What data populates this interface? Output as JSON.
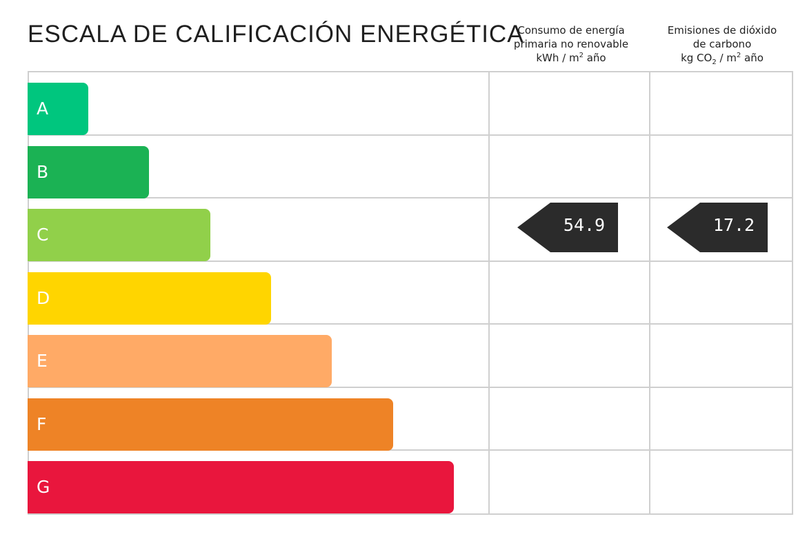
{
  "chart_data": {
    "type": "bar",
    "title": "ESCALA DE CALIFICACIÓN ENERGÉTICA",
    "categories": [
      "A",
      "B",
      "C",
      "D",
      "E",
      "F",
      "G"
    ],
    "values": [
      1,
      2,
      3,
      4,
      5,
      6,
      7
    ],
    "colors": [
      "#00c67e",
      "#1bb254",
      "#91d04a",
      "#ffd500",
      "#ffaa66",
      "#ee8326",
      "#e9163d"
    ],
    "columns": [
      {
        "key": "energy",
        "header_lines": [
          "Consumo de energía",
          "primaria no renovable"
        ],
        "unit_prefix": "kWh / m",
        "unit_sup": "2",
        "unit_suffix": " año",
        "rating": "C",
        "value": "54.9"
      },
      {
        "key": "co2",
        "header_lines": [
          "Emisiones de dióxido",
          "de carbono"
        ],
        "unit_prefix": "kg CO",
        "unit_sub": "2",
        "unit_mid": " / m",
        "unit_sup": "2",
        "unit_suffix": " año",
        "rating": "C",
        "value": "17.2"
      }
    ],
    "grid": true,
    "legend": "none"
  }
}
